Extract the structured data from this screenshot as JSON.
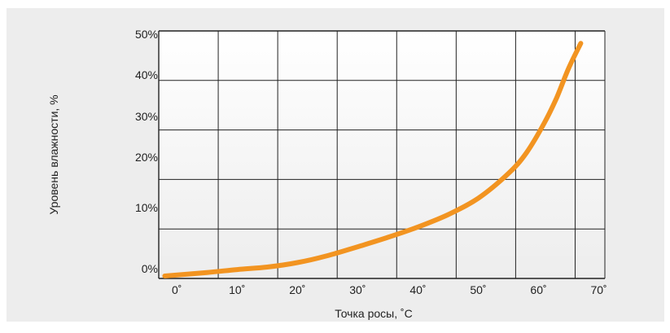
{
  "chart_data": {
    "type": "line",
    "xlabel": "Точка росы, ˚С",
    "ylabel": "Уровень влажности, %",
    "x_ticks": [
      {
        "value": 0,
        "label": "0˚"
      },
      {
        "value": 10,
        "label": "10˚"
      },
      {
        "value": 20,
        "label": "20˚"
      },
      {
        "value": 30,
        "label": "30˚"
      },
      {
        "value": 40,
        "label": "40˚"
      },
      {
        "value": 50,
        "label": "50˚"
      },
      {
        "value": 60,
        "label": "60˚"
      },
      {
        "value": 70,
        "label": "70˚"
      }
    ],
    "y_ticks": [
      {
        "value": 0,
        "label": "0%"
      },
      {
        "value": 10,
        "label": "10%"
      },
      {
        "value": 20,
        "label": "20%"
      },
      {
        "value": 30,
        "label": "30%"
      },
      {
        "value": 40,
        "label": "40%"
      },
      {
        "value": 50,
        "label": "50%"
      }
    ],
    "xlim": [
      -3,
      71
    ],
    "ylim": [
      0,
      50
    ],
    "grid": true,
    "series": [
      {
        "color": "#f29421",
        "x": [
          -2,
          5,
          10,
          15,
          20,
          25,
          30,
          35,
          40,
          45,
          50,
          55,
          58,
          61,
          63,
          65,
          67
        ],
        "y": [
          0.5,
          1.2,
          1.8,
          2.3,
          3.2,
          4.6,
          6.4,
          8.3,
          10.4,
          12.9,
          16.2,
          21.2,
          25.4,
          31.5,
          36.5,
          42.5,
          47.5
        ]
      }
    ],
    "colors": {
      "panel_background": "#ededed",
      "plot_background_top": "#ffffff",
      "plot_background_bottom": "#ededed",
      "grid": "#222222"
    }
  }
}
